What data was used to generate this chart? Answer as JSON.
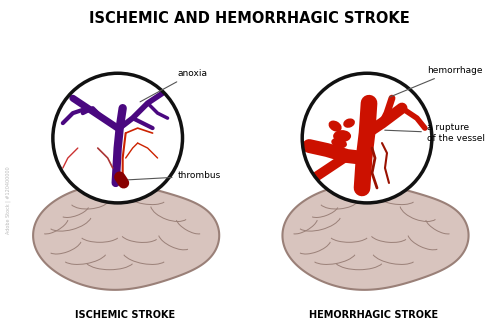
{
  "title": "ISCHEMIC AND HEMORRHAGIC STROKE",
  "title_fontsize": 10.5,
  "title_weight": "bold",
  "background_color": "#ffffff",
  "left_label": "ISCHEMIC STROKE",
  "right_label": "HEMORRHAGIC STROKE",
  "label_fontsize": 7,
  "annotation_fontsize": 6.5,
  "brain_color_light": "#d8c4be",
  "brain_color_mid": "#c8b0a8",
  "brain_color_dark": "#b89a92",
  "brain_edge_color": "#9a8078",
  "vessel_purple": "#4a0880",
  "vessel_red_thin": "#cc2200",
  "vessel_red_thick": "#cc1100",
  "vessel_thrombus": "#880000",
  "circle_edge": "#111111",
  "circle_lw": 2.5,
  "watermark_color": "#bbbbbb"
}
